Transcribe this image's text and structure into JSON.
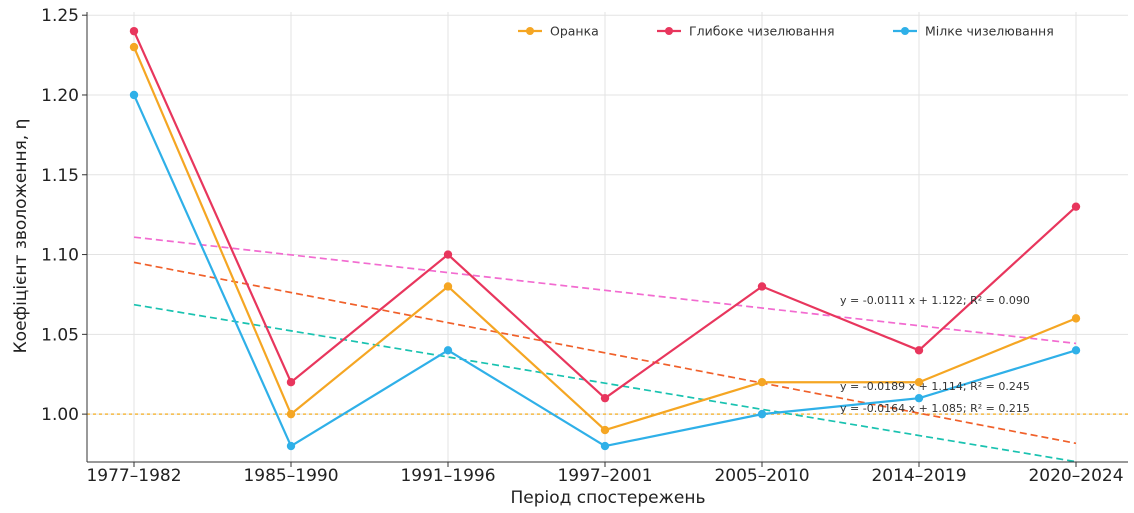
{
  "chart_data": {
    "type": "line",
    "xlabel": "Період спостережень",
    "ylabel": "Коефіцієнт зволоження, η",
    "categories": [
      "1977–1982",
      "1985–1990",
      "1991–1996",
      "1997–2001",
      "2005–2010",
      "2014–2019",
      "2020–2024"
    ],
    "ylim": [
      0.97,
      1.252
    ],
    "yticks": [
      "1.00",
      "1.05",
      "1.10",
      "1.15",
      "1.20",
      "1.25"
    ],
    "grid": true,
    "legend_position": "top-right",
    "series": [
      {
        "name": "Оранка",
        "color": "#f5a623",
        "values": [
          1.23,
          1.0,
          1.08,
          0.99,
          1.02,
          1.02,
          1.06
        ]
      },
      {
        "name": "Глибоке чизелювання",
        "color": "#e8365d",
        "values": [
          1.24,
          1.02,
          1.1,
          1.01,
          1.08,
          1.04,
          1.13
        ]
      },
      {
        "name": "Мілке чизелювання",
        "color": "#2fb0e8",
        "values": [
          1.2,
          0.98,
          1.04,
          0.98,
          1.0,
          1.01,
          1.04
        ]
      }
    ],
    "trendlines": [
      {
        "color": "#f26bd0",
        "slope": -0.0111,
        "intercept": 1.122,
        "equation": "y = -0.0111 x + 1.122;  R² = 0.090"
      },
      {
        "color": "#f0602a",
        "slope": -0.0189,
        "intercept": 1.114,
        "equation": "y = -0.0189 x + 1.114;  R² = 0.245"
      },
      {
        "color": "#19c2b0",
        "slope": -0.0164,
        "intercept": 1.085,
        "equation": "y = -0.0164 x + 1.085;  R² = 0.215"
      }
    ],
    "reference_line": {
      "y": 1.0,
      "color": "#f5b942"
    }
  }
}
